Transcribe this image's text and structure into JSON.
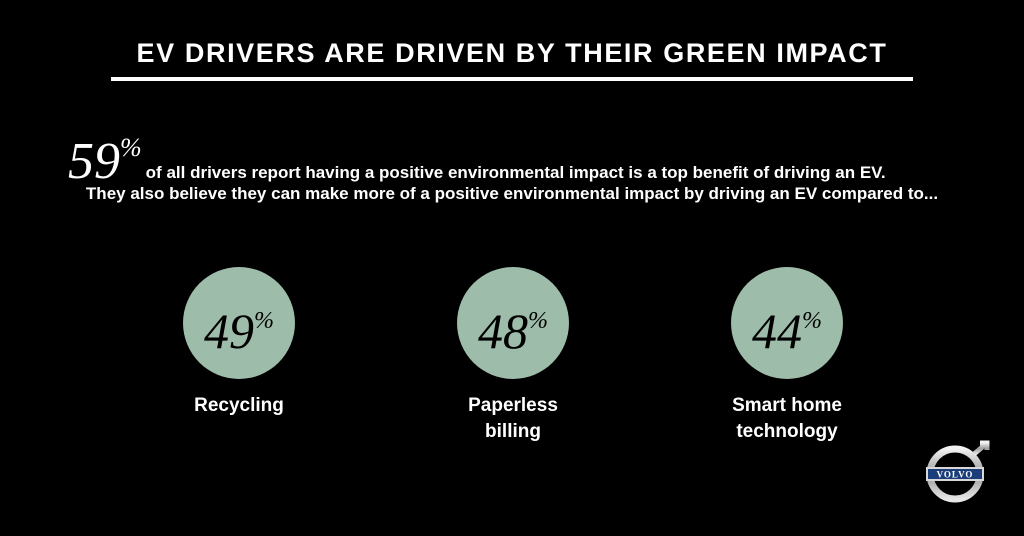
{
  "title": "EV DRIVERS ARE DRIVEN BY THEIR GREEN IMPACT",
  "headline": {
    "stat_value": "59",
    "stat_unit": "%",
    "text": "of all drivers report having a positive environmental impact is a top benefit of driving an EV."
  },
  "subheadline": "They also believe they can make more of a positive environmental impact by driving an EV compared to...",
  "stats": [
    {
      "value": "49",
      "unit": "%",
      "label_line1": "Recycling",
      "label_line2": ""
    },
    {
      "value": "48",
      "unit": "%",
      "label_line1": "Paperless",
      "label_line2": "billing"
    },
    {
      "value": "44",
      "unit": "%",
      "label_line1": "Smart home",
      "label_line2": "technology"
    }
  ],
  "logo": {
    "text": "VOLVO",
    "icon": "volvo-iron-mark-icon"
  },
  "colors": {
    "background": "#000000",
    "accent_circle": "#9dbca9",
    "text": "#ffffff"
  }
}
